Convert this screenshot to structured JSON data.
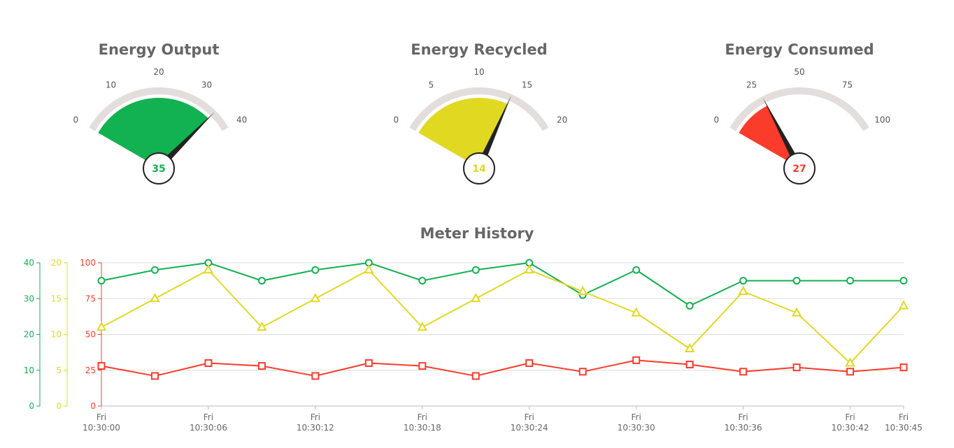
{
  "gauges": [
    {
      "title": "Energy Output",
      "value": 35,
      "min": 0,
      "max": 40,
      "ticks": [
        0,
        10,
        20,
        30,
        40
      ],
      "color": "#12b151"
    },
    {
      "title": "Energy Recycled",
      "value": 14,
      "min": 0,
      "max": 20,
      "ticks": [
        0,
        5,
        10,
        15,
        20
      ],
      "color": "#e1d821"
    },
    {
      "title": "Energy Consumed",
      "value": 27,
      "min": 0,
      "max": 100,
      "ticks": [
        0,
        25,
        50,
        75,
        100
      ],
      "color": "#fb3b2b"
    }
  ],
  "chart_data": {
    "type": "line",
    "title": "Meter History",
    "x": [
      "10:30:00",
      "10:30:03",
      "10:30:06",
      "10:30:09",
      "10:30:12",
      "10:30:15",
      "10:30:18",
      "10:30:21",
      "10:30:24",
      "10:30:27",
      "10:30:30",
      "10:30:33",
      "10:30:36",
      "10:30:39",
      "10:30:42",
      "10:30:45"
    ],
    "x_tick_labels": [
      [
        "Fri",
        "10:30:00"
      ],
      [
        "Fri",
        "10:30:06"
      ],
      [
        "Fri",
        "10:30:12"
      ],
      [
        "Fri",
        "10:30:18"
      ],
      [
        "Fri",
        "10:30:24"
      ],
      [
        "Fri",
        "10:30:30"
      ],
      [
        "Fri",
        "10:30:36"
      ],
      [
        "Fri",
        "10:30:42"
      ],
      [
        "Fri",
        "10:30:45"
      ]
    ],
    "x_tick_times": [
      "10:30:00",
      "10:30:06",
      "10:30:12",
      "10:30:18",
      "10:30:24",
      "10:30:30",
      "10:30:36",
      "10:30:42",
      "10:30:45"
    ],
    "axes": [
      {
        "id": "output",
        "color": "#12b151",
        "range": [
          0,
          40
        ],
        "ticks": [
          0,
          10,
          20,
          30,
          40
        ]
      },
      {
        "id": "recycled",
        "color": "#e1d821",
        "range": [
          0,
          20
        ],
        "ticks": [
          0,
          5,
          10,
          15,
          20
        ]
      },
      {
        "id": "consumed",
        "color": "#fb3b2b",
        "range": [
          0,
          100
        ],
        "ticks": [
          0,
          25,
          50,
          75,
          100
        ]
      }
    ],
    "series": [
      {
        "axis": "output",
        "color": "#12b151",
        "marker": "circle",
        "values": [
          35,
          38,
          40,
          35,
          38,
          40,
          35,
          38,
          40,
          31,
          38,
          28,
          35,
          35,
          35,
          35
        ]
      },
      {
        "axis": "recycled",
        "color": "#e1d821",
        "marker": "triangle",
        "values": [
          11,
          15,
          19,
          11,
          15,
          19,
          11,
          15,
          19,
          16,
          13,
          8,
          16,
          13,
          6,
          14
        ]
      },
      {
        "axis": "consumed",
        "color": "#fb3b2b",
        "marker": "square",
        "values": [
          28,
          21,
          30,
          28,
          21,
          30,
          28,
          21,
          30,
          24,
          32,
          29,
          24,
          27,
          24,
          27
        ]
      }
    ],
    "grid": true,
    "legend": "none"
  }
}
